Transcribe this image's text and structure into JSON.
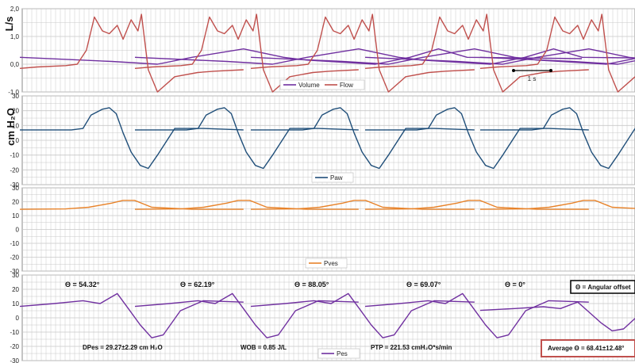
{
  "colors": {
    "volume": "#7030a0",
    "flow": "#c0504d",
    "paw": "#1f4e79",
    "pves": "#e8832a",
    "pes": "#7030a0",
    "grid": "#c8c8c8",
    "average_box": "#c0504d"
  },
  "chart_data": [
    {
      "type": "line",
      "ylabel": "L/s",
      "ylim": [
        -1.0,
        2.0
      ],
      "y_ticks": [
        "2,0",
        "1,0",
        "0,0",
        "-1,0"
      ],
      "grid": true,
      "legend": "bottom-center",
      "scale_bar_label": "1 s",
      "series": [
        {
          "name": "Volume",
          "x": [
            0.0,
            0.8,
            1.2,
            1.5,
            1.95,
            2.3,
            2.5,
            3.1,
            3.4,
            3.65,
            3.9,
            4.9
          ],
          "y": [
            0.25,
            0.1,
            0.0,
            0.25,
            0.55,
            0.25,
            0.15,
            0.0,
            0.25,
            0.55,
            0.25,
            0.2
          ]
        },
        {
          "name": "Flow",
          "x": [
            0.0,
            0.15,
            0.4,
            0.5,
            0.58,
            0.65,
            0.72,
            0.78,
            0.85,
            0.9,
            0.97,
            1.03,
            1.06,
            1.12,
            1.2,
            1.35,
            1.55,
            1.7,
            1.95
          ],
          "y": [
            -0.15,
            -0.1,
            -0.05,
            0.0,
            0.5,
            1.7,
            1.2,
            1.1,
            1.4,
            0.9,
            1.6,
            1.2,
            1.8,
            -0.2,
            -1.0,
            -0.45,
            -0.3,
            -0.25,
            -0.2
          ]
        }
      ]
    },
    {
      "type": "line",
      "ylabel": "cm H₂O",
      "ylim": [
        -30,
        30
      ],
      "y_ticks": [
        "30",
        "20",
        "10",
        "0",
        "-10",
        "-20",
        "-30"
      ],
      "grid": true,
      "legend": "bottom-center",
      "series": [
        {
          "name": "Paw",
          "x": [
            0.0,
            0.45,
            0.55,
            0.62,
            0.72,
            0.78,
            0.84,
            0.9,
            0.97,
            1.05,
            1.12,
            1.2,
            1.35,
            1.6,
            1.95
          ],
          "y": [
            7,
            7,
            8,
            17,
            21,
            22,
            18,
            5,
            -8,
            -17,
            -19,
            -10,
            8,
            8,
            7
          ]
        }
      ]
    },
    {
      "type": "line",
      "ylabel": "",
      "ylim": [
        -30,
        30
      ],
      "y_ticks": [
        "30",
        "20",
        "10",
        "0",
        "-10",
        "-20",
        "-30"
      ],
      "grid": true,
      "legend": "bottom-center",
      "series": [
        {
          "name": "Pves",
          "x": [
            0.0,
            0.4,
            0.6,
            0.8,
            0.9,
            1.0,
            1.15,
            1.5,
            1.95
          ],
          "y": [
            14.5,
            14.8,
            16,
            19,
            21,
            21,
            16,
            14.5,
            14.5
          ]
        }
      ]
    },
    {
      "type": "line",
      "ylabel": "",
      "ylim": [
        -30,
        30
      ],
      "y_ticks": [
        "30",
        "20",
        "10",
        "0",
        "-10",
        "-20",
        "-30"
      ],
      "grid": true,
      "legend": "bottom-center",
      "series": [
        {
          "name": "Pes",
          "x": [
            0.0,
            0.3,
            0.55,
            0.7,
            0.85,
            0.95,
            1.05,
            1.15,
            1.25,
            1.4,
            1.6,
            1.95
          ],
          "y": [
            8,
            10,
            12,
            10,
            17,
            6,
            -5,
            -14,
            -12,
            5,
            12,
            11
          ]
        }
      ],
      "annotations": {
        "angles": [
          "Θ = 54.32°",
          "Θ = 62.19°",
          "Θ = 88.05°",
          "Θ = 69.07°",
          "Θ = 0°"
        ],
        "angular_offset_label": "Θ = Angular offset",
        "dpes": "DPes = 29.27±2.29 cm H₂O",
        "wob": "WOB = 0.85 J/L",
        "ptp": "PTP = 221.53 cmH₂O*s/min",
        "average": "Average  Θ = 68.41±12.48°"
      }
    }
  ]
}
